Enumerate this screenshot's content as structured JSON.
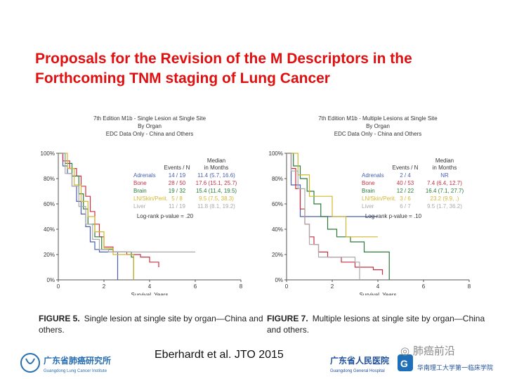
{
  "slide": {
    "title": "Proposals for the Revision of the M Descriptors in the Forthcoming TNM staging of Lung Cancer",
    "citation": "Eberhardt et al. JTO 2015",
    "logo_left_cn": "广东省肺癌研究所",
    "logo_left_en": "Guangdong Lung Cancer Institute",
    "logo_right_cn": "广东省人民医院",
    "logo_right_en": "Guangdong General Hospital",
    "logo_right_cn2": "华南理工大学第一临床学院",
    "watermark": "肺癌前沿"
  },
  "chart_data": [
    {
      "type": "line",
      "title": "7th Edition M1b - Single Lesion at Single Site",
      "subtitle1": "By Organ",
      "subtitle2": "EDC Data Only - China and Others",
      "xlabel": "Survival, Years",
      "xlim": [
        0,
        8
      ],
      "ylim": [
        0,
        100
      ],
      "xticks": [
        "0",
        "2",
        "4",
        "6",
        "8"
      ],
      "yticks": [
        "0%",
        "20%",
        "40%",
        "60%",
        "80%",
        "100%"
      ],
      "table_header": {
        "events": "Events / N",
        "median1": "Median",
        "median2": "in Months"
      },
      "series": [
        {
          "name": "Adrenals",
          "events": "14 / 19",
          "median": "11.4 (5.7, 16.6)",
          "color": "#4a5fb0",
          "points": [
            [
              0,
              100
            ],
            [
              0.2,
              90
            ],
            [
              0.4,
              84
            ],
            [
              0.6,
              74
            ],
            [
              0.8,
              62
            ],
            [
              1.0,
              52
            ],
            [
              1.2,
              42
            ],
            [
              1.4,
              30
            ],
            [
              1.6,
              24
            ],
            [
              1.8,
              22
            ],
            [
              2.4,
              22
            ],
            [
              2.6,
              0
            ]
          ]
        },
        {
          "name": "Bone",
          "events": "28 / 50",
          "median": "17.6 (15.1, 25.7)",
          "color": "#c83040",
          "points": [
            [
              0,
              100
            ],
            [
              0.2,
              94
            ],
            [
              0.5,
              88
            ],
            [
              0.8,
              82
            ],
            [
              1.0,
              74
            ],
            [
              1.2,
              66
            ],
            [
              1.4,
              54
            ],
            [
              1.6,
              44
            ],
            [
              1.8,
              34
            ],
            [
              2.0,
              26
            ],
            [
              2.4,
              22
            ],
            [
              3.0,
              20
            ],
            [
              3.6,
              18
            ],
            [
              4.0,
              14
            ],
            [
              4.4,
              10
            ]
          ]
        },
        {
          "name": "Brain",
          "events": "19 / 32",
          "median": "15.4 (11.4, 19.5)",
          "color": "#2a7a3a",
          "points": [
            [
              0,
              100
            ],
            [
              0.3,
              92
            ],
            [
              0.6,
              82
            ],
            [
              0.9,
              68
            ],
            [
              1.1,
              56
            ],
            [
              1.3,
              44
            ],
            [
              1.6,
              34
            ],
            [
              1.9,
              24
            ],
            [
              2.4,
              22
            ],
            [
              3.2,
              18
            ],
            [
              3.3,
              0
            ]
          ]
        },
        {
          "name": "LN/Skin/Perit.",
          "events": "5 / 8",
          "median": "9.5 (7.5, 38.3)",
          "color": "#d4b830",
          "points": [
            [
              0,
              100
            ],
            [
              0.4,
              88
            ],
            [
              0.7,
              75
            ],
            [
              1.0,
              62
            ],
            [
              1.3,
              50
            ],
            [
              1.6,
              38
            ],
            [
              2.0,
              25
            ],
            [
              2.4,
              20
            ],
            [
              3.2,
              20
            ],
            [
              3.3,
              0
            ]
          ]
        },
        {
          "name": "Liver",
          "events": "11 / 19",
          "median": "11.8 (8.1, 19.2)",
          "color": "#aaaaaa",
          "points": [
            [
              0,
              100
            ],
            [
              0.3,
              84
            ],
            [
              0.6,
              74
            ],
            [
              0.9,
              58
            ],
            [
              1.2,
              44
            ],
            [
              1.5,
              32
            ],
            [
              1.8,
              24
            ],
            [
              2.2,
              22
            ],
            [
              6.0,
              22
            ]
          ]
        }
      ],
      "pvalue": "Log-rank p-value = .20",
      "caption_label": "FIGURE 5.",
      "caption_text": "Single lesion at single site by organ—China and others."
    },
    {
      "type": "line",
      "title": "7th Edition M1b - Multiple Lesions at Single Site",
      "subtitle1": "By Organ",
      "subtitle2": "EDC Data Only - China and Others",
      "xlabel": "Survival, Years",
      "xlim": [
        0,
        8
      ],
      "ylim": [
        0,
        100
      ],
      "xticks": [
        "0",
        "2",
        "4",
        "6",
        "8"
      ],
      "yticks": [
        "0%",
        "20%",
        "40%",
        "60%",
        "80%",
        "100%"
      ],
      "table_header": {
        "events": "Events / N",
        "median1": "Median",
        "median2": "in Months"
      },
      "series": [
        {
          "name": "Adrenals",
          "events": "2 / 4",
          "median": "NR",
          "color": "#4a5fb0",
          "points": [
            [
              0,
              100
            ],
            [
              0.2,
              75
            ],
            [
              0.6,
              50
            ],
            [
              4.0,
              50
            ]
          ]
        },
        {
          "name": "Bone",
          "events": "40 / 53",
          "median": "7.4 (6.4, 12.7)",
          "color": "#c83040",
          "points": [
            [
              0,
              100
            ],
            [
              0.2,
              88
            ],
            [
              0.4,
              72
            ],
            [
              0.6,
              56
            ],
            [
              0.8,
              44
            ],
            [
              1.0,
              34
            ],
            [
              1.2,
              28
            ],
            [
              1.4,
              22
            ],
            [
              1.8,
              18
            ],
            [
              2.4,
              14
            ],
            [
              3.0,
              10
            ],
            [
              3.8,
              8
            ],
            [
              4.2,
              4
            ]
          ]
        },
        {
          "name": "Brain",
          "events": "12 / 22",
          "median": "16.4 (7.1, 27.7)",
          "color": "#2a7a3a",
          "points": [
            [
              0,
              100
            ],
            [
              0.3,
              90
            ],
            [
              0.6,
              80
            ],
            [
              0.9,
              70
            ],
            [
              1.2,
              60
            ],
            [
              1.5,
              50
            ],
            [
              1.8,
              40
            ],
            [
              2.2,
              34
            ],
            [
              2.8,
              30
            ],
            [
              3.4,
              22
            ],
            [
              4.4,
              22
            ],
            [
              4.5,
              0
            ]
          ]
        },
        {
          "name": "LN/Skin/Perit.",
          "events": "3 / 6",
          "median": "23.2 (9.9, .)",
          "color": "#d4b830",
          "points": [
            [
              0,
              100
            ],
            [
              0.5,
              83
            ],
            [
              1.0,
              66
            ],
            [
              2.0,
              50
            ],
            [
              2.6,
              34
            ],
            [
              4.0,
              34
            ]
          ]
        },
        {
          "name": "Liver",
          "events": "6 / 7",
          "median": "9.5 (1.7, 36.2)",
          "color": "#aaaaaa",
          "points": [
            [
              0,
              100
            ],
            [
              0.2,
              86
            ],
            [
              0.5,
              72
            ],
            [
              0.8,
              44
            ],
            [
              1.0,
              28
            ],
            [
              1.4,
              18
            ],
            [
              2.0,
              18
            ],
            [
              3.0,
              14
            ],
            [
              3.2,
              0
            ]
          ]
        }
      ],
      "pvalue": "Log-rank p-value = .10",
      "caption_label": "FIGURE 7.",
      "caption_text": "Multiple lesions at single site by organ—China and others."
    }
  ]
}
